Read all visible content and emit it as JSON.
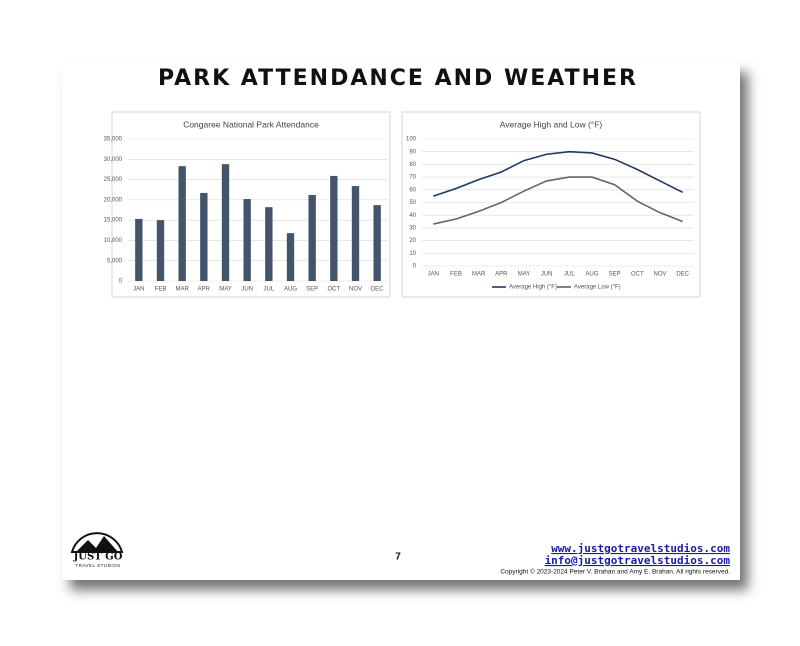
{
  "header": {
    "title": "PARK ATTENDANCE AND WEATHER"
  },
  "chart_data": [
    {
      "type": "bar",
      "title": "Congaree National Park Attendance",
      "categories": [
        "JAN",
        "FEB",
        "MAR",
        "APR",
        "MAY",
        "JUN",
        "JUL",
        "AUG",
        "SEP",
        "OCT",
        "NOV",
        "DEC"
      ],
      "values": [
        15300,
        15000,
        28300,
        21700,
        28800,
        20200,
        18200,
        11800,
        21200,
        25900,
        23400,
        18700
      ],
      "color": "#44546a",
      "ylim": [
        0,
        35000
      ],
      "yticks": [
        0,
        {
          "value": 5000,
          "label": "5,000"
        },
        {
          "value": 10000,
          "label": "10,000"
        },
        {
          "value": 15000,
          "label": "15,000"
        },
        {
          "value": 20000,
          "label": "20,000"
        },
        {
          "value": 25000,
          "label": "25,000"
        },
        {
          "value": 30000,
          "label": "30,000"
        },
        {
          "value": 35000,
          "label": "35,000"
        }
      ],
      "grid": true
    },
    {
      "type": "line",
      "title": "Average High and Low (°F)",
      "categories": [
        "JAN",
        "FEB",
        "MAR",
        "APR",
        "MAY",
        "JUN",
        "JUL",
        "AUG",
        "SEP",
        "OCT",
        "NOV",
        "DEC"
      ],
      "series": [
        {
          "name": "Average High (°F)",
          "color": "#1f3864",
          "values": [
            55,
            61,
            68,
            74,
            83,
            88,
            90,
            89,
            84,
            76,
            67,
            58
          ]
        },
        {
          "name": "Average Low (°F)",
          "color": "#666666",
          "values": [
            33,
            37,
            43,
            50,
            59,
            67,
            70,
            70,
            64,
            51,
            42,
            35
          ]
        }
      ],
      "ylim": [
        0,
        100
      ],
      "yticks": [
        0,
        10,
        20,
        30,
        40,
        50,
        60,
        70,
        80,
        90,
        100
      ],
      "grid": true,
      "legend": "bottom"
    }
  ],
  "footer": {
    "logo_title": "JUST GO",
    "logo_subtitle": "TRAVEL STUDIOS",
    "page_number": "7",
    "website": "www.justgotravelstudios.com",
    "email": "info@justgotravelstudios.com",
    "copyright": "Copyright © 2023-2024 Peter V. Brahan and Amy E. Brahan.  All rights reserved."
  }
}
